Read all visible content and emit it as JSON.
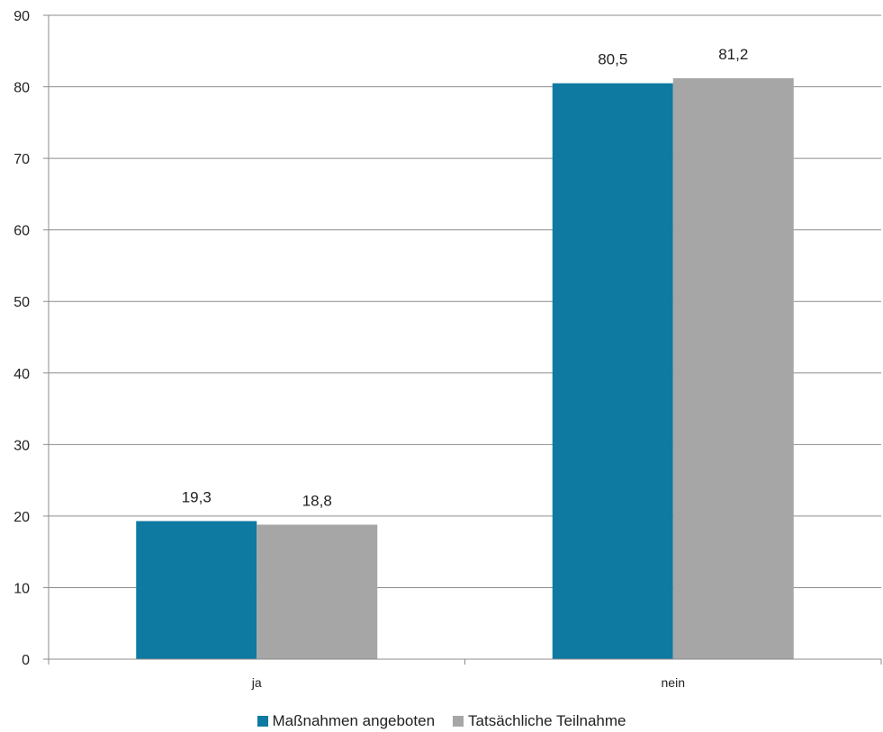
{
  "chart_data": {
    "type": "bar",
    "categories": [
      "ja",
      "nein"
    ],
    "series": [
      {
        "name": "Maßnahmen angeboten",
        "values": [
          19.3,
          80.5
        ],
        "labels": [
          "19,3",
          "80,5"
        ],
        "color": "#0f7aa1"
      },
      {
        "name": "Tatsächliche Teilnahme",
        "values": [
          18.8,
          81.2
        ],
        "labels": [
          "18,8",
          "81,2"
        ],
        "color": "#a6a6a6"
      }
    ],
    "ylim": [
      0,
      90
    ],
    "yticks": [
      0,
      10,
      20,
      30,
      40,
      50,
      60,
      70,
      80,
      90
    ],
    "grid": true,
    "legend_position": "bottom",
    "title": "",
    "xlabel": "",
    "ylabel": ""
  }
}
